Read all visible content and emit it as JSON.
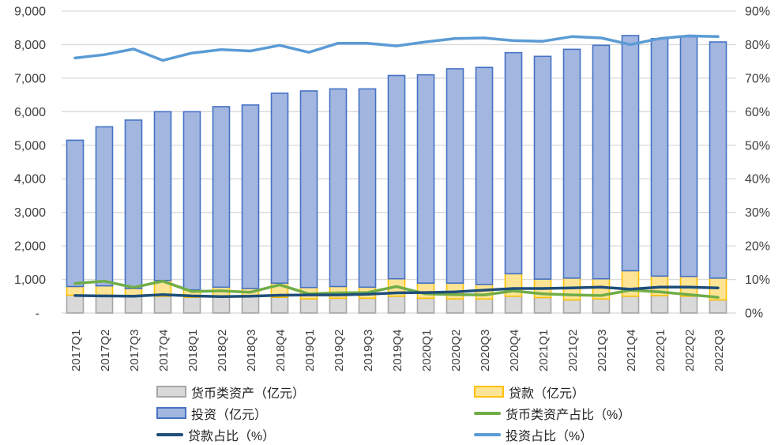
{
  "chart_data": {
    "type": "combo-stacked-bar-line",
    "categories": [
      "2017Q1",
      "2017Q2",
      "2017Q3",
      "2017Q4",
      "2018Q1",
      "2018Q2",
      "2018Q3",
      "2018Q4",
      "2019Q1",
      "2019Q2",
      "2019Q3",
      "2019Q4",
      "2020Q1",
      "2020Q2",
      "2020Q3",
      "2020Q4",
      "2021Q1",
      "2021Q2",
      "2021Q3",
      "2021Q4",
      "2022Q1",
      "2022Q2",
      "2022Q3"
    ],
    "bar_series": [
      {
        "name": "货币类资产（亿元）",
        "fill": "#D9D9D9",
        "border": "#A6A6A6",
        "values": [
          530,
          530,
          500,
          500,
          470,
          490,
          490,
          470,
          420,
          440,
          440,
          500,
          440,
          420,
          420,
          500,
          460,
          390,
          420,
          500,
          520,
          500,
          390
        ]
      },
      {
        "name": "贷款（亿元）",
        "fill": "#FFE495",
        "border": "#FFC000",
        "values": [
          260,
          280,
          230,
          470,
          220,
          280,
          240,
          420,
          340,
          350,
          330,
          520,
          450,
          470,
          430,
          670,
          550,
          650,
          600,
          760,
          580,
          590,
          650
        ]
      },
      {
        "name": "投资（亿元）",
        "fill": "#A3B6E0",
        "border": "#4472C4",
        "values": [
          4360,
          4740,
          5020,
          5030,
          5310,
          5380,
          5470,
          5660,
          5860,
          5890,
          5910,
          6060,
          6210,
          6390,
          6470,
          6590,
          6640,
          6820,
          6960,
          7010,
          7080,
          7140,
          7040
        ]
      }
    ],
    "line_series": [
      {
        "name": "货币类资产占比（%）",
        "color": "#70AD47",
        "values": [
          8.8,
          9.5,
          7.6,
          9.5,
          6.4,
          6.6,
          6.2,
          8.4,
          5.7,
          6.0,
          6.1,
          7.9,
          5.7,
          5.5,
          5.4,
          6.6,
          5.7,
          5.4,
          5.2,
          6.8,
          6.3,
          5.5,
          4.7
        ]
      },
      {
        "name": "贷款占比（%）",
        "color": "#1F4E79",
        "values": [
          5.2,
          5.1,
          5.0,
          5.5,
          5.1,
          4.9,
          5.0,
          5.3,
          5.4,
          5.4,
          5.6,
          6.0,
          6.1,
          6.3,
          6.8,
          7.3,
          7.3,
          7.5,
          7.7,
          7.1,
          7.7,
          7.7,
          7.5
        ]
      },
      {
        "name": "投资占比（%）",
        "color": "#5B9BD5",
        "values": [
          76.0,
          77.0,
          78.7,
          75.3,
          77.5,
          78.5,
          78.1,
          79.8,
          77.7,
          80.4,
          80.4,
          79.6,
          80.8,
          81.8,
          82.0,
          81.2,
          81.0,
          82.4,
          82.0,
          80.0,
          81.8,
          82.6,
          82.4
        ]
      }
    ],
    "left_axis": {
      "min": 0,
      "max": 9000,
      "step": 1000,
      "tick_labels": [
        "9,000",
        "8,000",
        "7,000",
        "6,000",
        "5,000",
        "4,000",
        "3,000",
        "2,000",
        "1,000",
        "-"
      ]
    },
    "right_axis": {
      "min": 0,
      "max": 90,
      "step": 10,
      "tick_labels": [
        "90%",
        "80%",
        "70%",
        "60%",
        "50%",
        "40%",
        "30%",
        "20%",
        "10%",
        "0%"
      ]
    },
    "gridline_color": "#D9D9D9",
    "axis_text_color": "#404040",
    "legend": [
      {
        "label": "货币类资产（亿元）",
        "swatch": "bar",
        "fill": "#D9D9D9",
        "border": "#A6A6A6"
      },
      {
        "label": "贷款（亿元）",
        "swatch": "bar",
        "fill": "#FFE495",
        "border": "#FFC000"
      },
      {
        "label": "投资（亿元）",
        "swatch": "bar",
        "fill": "#A3B6E0",
        "border": "#4472C4"
      },
      {
        "label": "货币类资产占比（%）",
        "swatch": "line",
        "fill": "#70AD47"
      },
      {
        "label": "贷款占比（%）",
        "swatch": "line",
        "fill": "#1F4E79"
      },
      {
        "label": "投资占比（%）",
        "swatch": "line",
        "fill": "#5B9BD5"
      }
    ]
  }
}
